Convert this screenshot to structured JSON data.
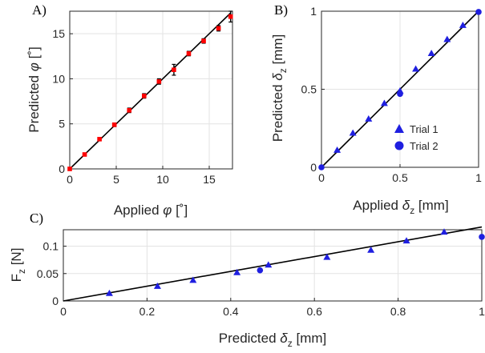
{
  "chart_data": [
    {
      "panel": "A)",
      "type": "scatter",
      "xlabel_text": "Applied ",
      "xlabel_sym": "φ",
      "xlabel_unit": " [˚]",
      "ylabel_text": "Predicted ",
      "ylabel_sym": "φ",
      "ylabel_unit": " [˚]",
      "xlim": [
        0,
        17.5
      ],
      "ylim": [
        0,
        17.5
      ],
      "xticks": [
        0,
        5,
        10,
        15
      ],
      "yticks": [
        0,
        5,
        10,
        15
      ],
      "grid": true,
      "marker_color": "#ff0000",
      "line_color": "#000000",
      "fit_line": [
        [
          0,
          0
        ],
        [
          17.3,
          17.3
        ]
      ],
      "series": [
        {
          "x": [
            0,
            1.6,
            3.2,
            4.8,
            6.4,
            8.0,
            9.6,
            11.2,
            12.8,
            14.4,
            16.0,
            17.3
          ],
          "y": [
            0,
            1.6,
            3.3,
            4.9,
            6.5,
            8.1,
            9.7,
            11.0,
            12.8,
            14.2,
            15.6,
            16.9
          ],
          "err": [
            0.1,
            0.15,
            0.15,
            0.2,
            0.25,
            0.25,
            0.3,
            0.6,
            0.25,
            0.25,
            0.3,
            0.6
          ]
        }
      ]
    },
    {
      "panel": "B)",
      "type": "scatter",
      "xlabel_text": "Applied ",
      "xlabel_sym": "δ",
      "xlabel_sub": "z",
      "xlabel_unit": " [mm]",
      "ylabel_text": "Predicted ",
      "ylabel_sym": "δ",
      "ylabel_sub": "z",
      "ylabel_unit": " [mm]",
      "xlim": [
        0,
        1
      ],
      "ylim": [
        0,
        1
      ],
      "xticks": [
        0,
        0.5,
        1
      ],
      "yticks": [
        0,
        0.5,
        1
      ],
      "grid": true,
      "legend": "bottom-right",
      "marker_color": "#1f1fe0",
      "fit_line": [
        [
          0,
          0
        ],
        [
          1,
          1
        ]
      ],
      "series": [
        {
          "name": "Trial 1",
          "marker": "triangle",
          "x": [
            0.1,
            0.2,
            0.3,
            0.4,
            0.5,
            0.6,
            0.7,
            0.8,
            0.9
          ],
          "y": [
            0.11,
            0.22,
            0.31,
            0.41,
            0.49,
            0.63,
            0.73,
            0.82,
            0.91
          ]
        },
        {
          "name": "Trial 2",
          "marker": "circle",
          "x": [
            0,
            0.5,
            1.0
          ],
          "y": [
            0,
            0.47,
            0.995
          ]
        }
      ]
    },
    {
      "panel": "C)",
      "type": "scatter",
      "xlabel_text": "Predicted ",
      "xlabel_sym": "δ",
      "xlabel_sub": "z",
      "xlabel_unit": " [mm]",
      "ylabel_text": "F",
      "ylabel_sub": "z",
      "ylabel_unit": " [N]",
      "xlim": [
        0,
        1
      ],
      "ylim": [
        0,
        0.13
      ],
      "xticks": [
        0,
        0.2,
        0.4,
        0.6,
        0.8,
        1
      ],
      "yticks": [
        0,
        0.05,
        0.1
      ],
      "grid": true,
      "marker_color": "#1f1fe0",
      "fit_line": [
        [
          0,
          0
        ],
        [
          1.0,
          0.135
        ]
      ],
      "series": [
        {
          "name": "Trial 1",
          "marker": "triangle",
          "x": [
            0.11,
            0.225,
            0.31,
            0.415,
            0.49,
            0.63,
            0.735,
            0.82,
            0.91
          ],
          "y": [
            0.014,
            0.027,
            0.038,
            0.052,
            0.066,
            0.08,
            0.093,
            0.11,
            0.126
          ]
        },
        {
          "name": "Trial 2",
          "marker": "circle",
          "x": [
            0.47,
            1.0
          ],
          "y": [
            0.056,
            0.117
          ]
        }
      ]
    }
  ]
}
